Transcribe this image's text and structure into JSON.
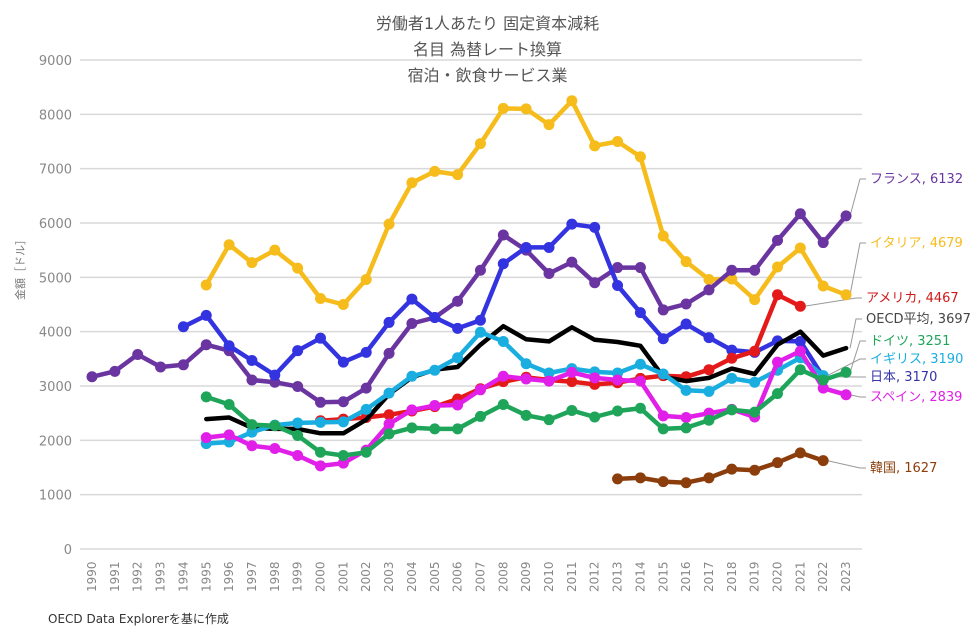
{
  "chart_data": {
    "type": "line",
    "title": [
      "労働者1人あたり 固定資本減耗",
      "名目 為替レート換算",
      "宿泊・飲食サービス業"
    ],
    "xlabel": "",
    "ylabel": "金額［ドル］",
    "ylim": [
      0,
      9000
    ],
    "yticks": [
      0,
      1000,
      2000,
      3000,
      4000,
      5000,
      6000,
      7000,
      8000,
      9000
    ],
    "grid": true,
    "legend": "end-labels-right",
    "x": [
      1990,
      1991,
      1992,
      1993,
      1994,
      1995,
      1996,
      1997,
      1998,
      1999,
      2000,
      2001,
      2002,
      2003,
      2004,
      2005,
      2006,
      2007,
      2008,
      2009,
      2010,
      2011,
      2012,
      2013,
      2014,
      2015,
      2016,
      2017,
      2018,
      2019,
      2020,
      2021,
      2022,
      2023
    ],
    "series": [
      {
        "name": "フランス",
        "label": "フランス, 6132",
        "color": "#6a35a0",
        "markers": true,
        "values": [
          3170,
          3270,
          3580,
          3350,
          3390,
          3760,
          3650,
          3110,
          3070,
          2990,
          2700,
          2710,
          2960,
          3600,
          4150,
          4260,
          4560,
          5130,
          5780,
          5500,
          5070,
          5280,
          4900,
          5180,
          5180,
          4400,
          4510,
          4770,
          5130,
          5130,
          5680,
          6170,
          5640,
          6132
        ]
      },
      {
        "name": "イタリア",
        "label": "イタリア, 4679",
        "color": "#f5bc1c",
        "markers": true,
        "values": [
          null,
          null,
          null,
          null,
          null,
          4860,
          5600,
          5270,
          5500,
          5170,
          4610,
          4500,
          4960,
          5980,
          6740,
          6950,
          6890,
          7460,
          8110,
          8100,
          7810,
          8250,
          7420,
          7500,
          7220,
          5760,
          5290,
          4960,
          4970,
          4590,
          5190,
          5540,
          4840,
          4679
        ]
      },
      {
        "name": "アメリカ",
        "label": "アメリカ, 4467",
        "color": "#e41a1a",
        "markers": true,
        "values": [
          null,
          null,
          null,
          null,
          null,
          null,
          null,
          null,
          null,
          null,
          2360,
          2390,
          2420,
          2470,
          2540,
          2620,
          2760,
          2950,
          3080,
          3160,
          3110,
          3080,
          3030,
          3060,
          3140,
          3190,
          3170,
          3300,
          3510,
          3640,
          4680,
          4467,
          null,
          null
        ]
      },
      {
        "name": "日本",
        "label": "日本, 3170",
        "color": "#3333e0",
        "markers": true,
        "values": [
          null,
          null,
          null,
          null,
          4090,
          4300,
          3740,
          3470,
          3200,
          3650,
          3880,
          3440,
          3620,
          4170,
          4600,
          4260,
          4060,
          4210,
          5250,
          5550,
          5550,
          5980,
          5920,
          4850,
          4350,
          3870,
          4140,
          3890,
          3660,
          3620,
          3830,
          3820,
          3170,
          null
        ]
      },
      {
        "name": "OECD平均",
        "label": "OECD平均, 3697",
        "color": "#000000",
        "markers": false,
        "values": [
          null,
          null,
          null,
          null,
          null,
          2390,
          2420,
          2230,
          2210,
          2210,
          2130,
          2130,
          2380,
          2850,
          3160,
          3300,
          3350,
          3760,
          4100,
          3860,
          3820,
          4080,
          3850,
          3810,
          3740,
          3170,
          3090,
          3150,
          3320,
          3220,
          3760,
          4000,
          3560,
          3697
        ]
      },
      {
        "name": "ドイツ",
        "label": "ドイツ, 3251",
        "color": "#1fa55a",
        "markers": true,
        "values": [
          null,
          null,
          null,
          null,
          null,
          2800,
          2660,
          2290,
          2270,
          2090,
          1780,
          1720,
          1780,
          2120,
          2230,
          2210,
          2210,
          2440,
          2660,
          2460,
          2380,
          2550,
          2430,
          2540,
          2590,
          2210,
          2230,
          2370,
          2560,
          2520,
          2860,
          3300,
          3110,
          3251
        ]
      },
      {
        "name": "イギリス",
        "label": "イギリス, 3190",
        "color": "#1aaee0",
        "markers": true,
        "values": [
          null,
          null,
          null,
          null,
          null,
          1940,
          1970,
          2150,
          2280,
          2320,
          2330,
          2340,
          2570,
          2870,
          3180,
          3290,
          3520,
          3990,
          3820,
          3410,
          3240,
          3320,
          3260,
          3240,
          3400,
          3220,
          2920,
          2900,
          3140,
          3070,
          3290,
          3520,
          3190,
          null
        ]
      },
      {
        "name": "スペイン",
        "label": "スペイン, 2839",
        "color": "#e020e8",
        "markers": true,
        "values": [
          null,
          null,
          null,
          null,
          null,
          2050,
          2100,
          1900,
          1850,
          1720,
          1530,
          1580,
          1820,
          2300,
          2560,
          2640,
          2650,
          2930,
          3180,
          3130,
          3090,
          3250,
          3150,
          3110,
          3090,
          2450,
          2420,
          2500,
          2570,
          2430,
          3440,
          3640,
          2960,
          2839
        ]
      },
      {
        "name": "韓国",
        "label": "韓国, 1627",
        "color": "#8b3e0c",
        "markers": true,
        "values": [
          null,
          null,
          null,
          null,
          null,
          null,
          null,
          null,
          null,
          null,
          null,
          null,
          null,
          null,
          null,
          null,
          null,
          null,
          null,
          null,
          null,
          null,
          null,
          1290,
          1310,
          1240,
          1220,
          1310,
          1470,
          1450,
          1590,
          1770,
          1627,
          null
        ]
      }
    ]
  },
  "source_note": "OECD Data Explorerを基に作成"
}
